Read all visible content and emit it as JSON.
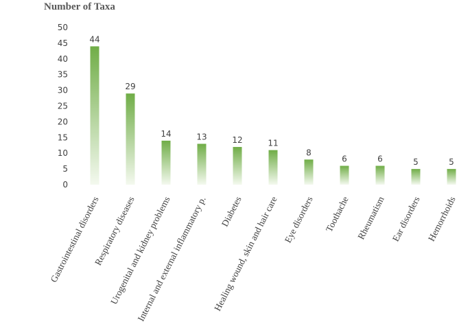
{
  "chart_data": {
    "type": "bar",
    "ylabel": "Number of Taxa",
    "categories": [
      "Gastrointestinal disorders",
      "Respiratory diseases",
      "Urogenital and  kidney problems",
      "Internal and external inflammatory p.",
      "Diabetes",
      "Healing wound, skin and hair care",
      "Eye disorders",
      "Toothache",
      "Rheumatism",
      "Ear disorders",
      "Hemorrhoids"
    ],
    "values": [
      44,
      29,
      14,
      13,
      12,
      11,
      8,
      6,
      6,
      5,
      5
    ],
    "ylim": [
      0,
      50
    ],
    "yticks": [
      0,
      5,
      10,
      15,
      20,
      25,
      30,
      35,
      40,
      45,
      50
    ],
    "grid": false,
    "colors": {
      "bar_top": "#70ad47",
      "bar_bottom": "#f4f9ef"
    }
  }
}
